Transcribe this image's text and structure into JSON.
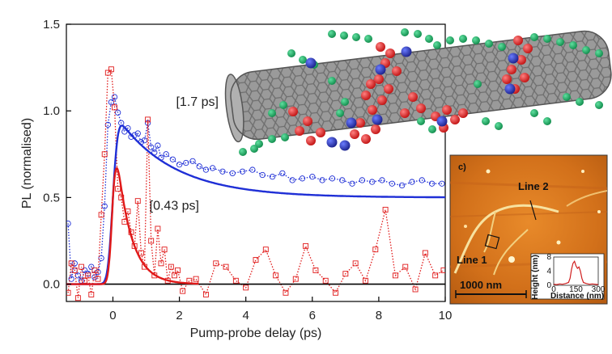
{
  "chart_data": {
    "type": "line",
    "xlabel": "Pump-probe delay (ps)",
    "ylabel": "PL (normalised)",
    "xlim": [
      -1.4,
      10
    ],
    "ylim": [
      -0.1,
      1.5
    ],
    "x_ticks": [
      0,
      2,
      4,
      6,
      8,
      10
    ],
    "y_ticks": [
      0.0,
      0.5,
      1.0,
      1.5
    ],
    "grid": false,
    "baseline_y": 0,
    "series": [
      {
        "name": "[1.7 ps]",
        "color": "#1f2fd6",
        "marker": "circle",
        "style": "dotted-data-with-solid-fit",
        "fit": {
          "tau": 1.7,
          "amplitude": 0.5,
          "offset": 0.5,
          "rise_sigma": 0.12
        },
        "x": [
          -1.35,
          -1.25,
          -1.15,
          -1.05,
          -0.95,
          -0.85,
          -0.75,
          -0.65,
          -0.55,
          -0.45,
          -0.35,
          -0.25,
          -0.15,
          -0.05,
          0.05,
          0.15,
          0.25,
          0.35,
          0.45,
          0.55,
          0.65,
          0.75,
          0.85,
          0.95,
          1.05,
          1.15,
          1.25,
          1.35,
          1.45,
          1.6,
          1.8,
          2.0,
          2.2,
          2.4,
          2.6,
          2.8,
          3.0,
          3.3,
          3.6,
          3.9,
          4.2,
          4.5,
          4.8,
          5.1,
          5.4,
          5.7,
          6.0,
          6.3,
          6.6,
          6.9,
          7.2,
          7.5,
          7.8,
          8.1,
          8.4,
          8.7,
          9.0,
          9.3,
          9.6,
          9.9
        ],
        "y": [
          0.35,
          0.03,
          0.12,
          0.05,
          0.02,
          0.08,
          0.06,
          0.1,
          0.04,
          0.07,
          0.15,
          0.45,
          0.92,
          1.05,
          1.08,
          0.99,
          0.93,
          0.88,
          0.9,
          0.85,
          0.86,
          0.87,
          0.82,
          0.83,
          0.93,
          0.79,
          0.76,
          0.8,
          0.73,
          0.75,
          0.72,
          0.69,
          0.7,
          0.71,
          0.68,
          0.66,
          0.67,
          0.65,
          0.64,
          0.65,
          0.66,
          0.63,
          0.62,
          0.64,
          0.6,
          0.61,
          0.62,
          0.6,
          0.61,
          0.6,
          0.58,
          0.6,
          0.59,
          0.6,
          0.58,
          0.57,
          0.59,
          0.6,
          0.58,
          0.58
        ]
      },
      {
        "name": "[0.43 ps]",
        "color": "#e01919",
        "marker": "square",
        "style": "dotted-data-with-solid-fit",
        "fit": {
          "tau": 0.43,
          "amplitude": 1.0,
          "offset": 0.0,
          "rise_sigma": 0.1
        },
        "x": [
          -1.35,
          -1.25,
          -1.15,
          -1.05,
          -0.95,
          -0.85,
          -0.75,
          -0.65,
          -0.55,
          -0.45,
          -0.35,
          -0.25,
          -0.15,
          -0.05,
          0.05,
          0.15,
          0.25,
          0.35,
          0.45,
          0.55,
          0.65,
          0.75,
          0.85,
          0.95,
          1.05,
          1.15,
          1.25,
          1.35,
          1.45,
          1.55,
          1.65,
          1.75,
          1.85,
          1.95,
          2.1,
          2.3,
          2.5,
          2.8,
          3.1,
          3.4,
          3.7,
          4.0,
          4.3,
          4.6,
          4.9,
          5.2,
          5.5,
          5.8,
          6.1,
          6.4,
          6.7,
          7.0,
          7.3,
          7.6,
          7.9,
          8.2,
          8.5,
          8.8,
          9.1,
          9.4,
          9.7,
          9.95
        ],
        "y": [
          -0.05,
          0.12,
          0.08,
          -0.08,
          0.1,
          0.02,
          0.05,
          -0.06,
          0.08,
          0.03,
          0.4,
          0.75,
          1.22,
          1.24,
          1.02,
          0.55,
          0.5,
          0.36,
          0.42,
          0.3,
          0.22,
          0.48,
          0.18,
          0.1,
          0.95,
          0.25,
          0.05,
          0.32,
          0.12,
          0.2,
          0.02,
          0.1,
          0.05,
          0.08,
          -0.04,
          0.02,
          0.03,
          -0.06,
          0.12,
          0.1,
          0.02,
          -0.02,
          0.14,
          0.2,
          0.05,
          -0.05,
          0.03,
          0.22,
          0.08,
          0.02,
          -0.05,
          0.06,
          0.12,
          0.02,
          0.2,
          0.43,
          0.05,
          0.1,
          -0.03,
          0.18,
          0.05,
          0.08
        ]
      }
    ],
    "annotations": [
      {
        "text": "[1.7 ps]",
        "x": 1.9,
        "y": 1.03
      },
      {
        "text": "[0.43 ps]",
        "x": 1.1,
        "y": 0.43
      }
    ]
  },
  "inset_afm": {
    "panel_label": "c)",
    "line1_label": "Line 1",
    "line2_label": "Line 2",
    "scale_bar_label": "1000 nm",
    "profile": {
      "ylabel": "Height (nm)",
      "xlabel": "Distance (nm)",
      "x_ticks": [
        0,
        150,
        300
      ],
      "y_ticks": [
        0,
        4,
        8
      ],
      "xlim": [
        0,
        300
      ],
      "ylim": [
        0,
        8
      ],
      "x": [
        0,
        20,
        40,
        60,
        80,
        100,
        110,
        120,
        130,
        140,
        150,
        160,
        170,
        180,
        190,
        200,
        220,
        240,
        260,
        280,
        300
      ],
      "y": [
        0.3,
        0.2,
        0.4,
        0.3,
        0.5,
        0.8,
        2.0,
        4.5,
        6.2,
        6.8,
        5.5,
        4.8,
        5.2,
        4.0,
        2.0,
        0.8,
        0.5,
        0.3,
        0.4,
        0.3,
        0.2
      ],
      "color": "#d02020"
    }
  }
}
